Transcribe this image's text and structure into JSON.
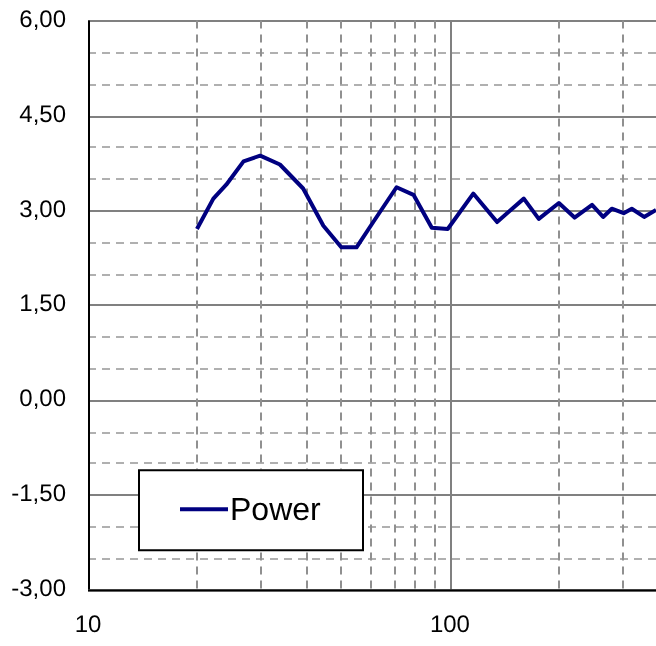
{
  "chart_data": {
    "type": "line",
    "x": [
      20,
      22.2,
      24.1,
      26.9,
      29.9,
      33.9,
      39.3,
      44.7,
      50.1,
      55.2,
      61.4,
      71.2,
      79.3,
      89.1,
      98.6,
      116,
      135,
      160,
      176,
      200,
      221,
      247,
      265,
      280,
      302,
      318,
      344,
      371
    ],
    "series": [
      {
        "name": "Power",
        "color": "#000080",
        "values": [
          2.7,
          3.18,
          3.4,
          3.77,
          3.86,
          3.72,
          3.34,
          2.75,
          2.41,
          2.41,
          2.81,
          3.36,
          3.24,
          2.72,
          2.7,
          3.26,
          2.81,
          3.18,
          2.86,
          3.11,
          2.88,
          3.08,
          2.89,
          3.02,
          2.95,
          3.02,
          2.89,
          3.0
        ]
      }
    ],
    "log": "x",
    "xlim": [
      10,
      371
    ],
    "xticks": [
      10,
      {
        "value": 20,
        "label": null
      },
      {
        "value": 30,
        "label": null
      },
      {
        "value": 40,
        "label": null
      },
      {
        "value": 50,
        "label": null
      },
      {
        "value": 60,
        "label": null
      },
      {
        "value": 70,
        "label": null
      },
      {
        "value": 80,
        "label": null
      },
      {
        "value": 90,
        "label": null
      },
      100,
      {
        "value": 200,
        "label": null
      },
      {
        "value": 300,
        "label": null
      }
    ],
    "ylim": [
      -3,
      6
    ],
    "yticks": [
      {
        "value": -3,
        "label": "-3,00"
      },
      {
        "value": -2.5,
        "label": null
      },
      {
        "value": -2,
        "label": null
      },
      {
        "value": -1.5,
        "label": "-1,50"
      },
      {
        "value": -1,
        "label": null
      },
      {
        "value": -0.5,
        "label": null
      },
      {
        "value": 0,
        "label": "0,00"
      },
      {
        "value": 0.5,
        "label": null
      },
      {
        "value": 1,
        "label": null
      },
      {
        "value": 1.5,
        "label": "1,50"
      },
      {
        "value": 2,
        "label": null
      },
      {
        "value": 2.5,
        "label": null
      },
      {
        "value": 3,
        "label": "3,00"
      },
      {
        "value": 3.5,
        "label": null
      },
      {
        "value": 4,
        "label": null
      },
      {
        "value": 4.5,
        "label": "4,50"
      },
      {
        "value": 5,
        "label": null
      },
      {
        "value": 5.5,
        "label": null
      },
      {
        "value": 6,
        "label": "6,00"
      }
    ],
    "grid": true,
    "legend": "bottom left",
    "marker": "none",
    "line_style": "solid"
  }
}
